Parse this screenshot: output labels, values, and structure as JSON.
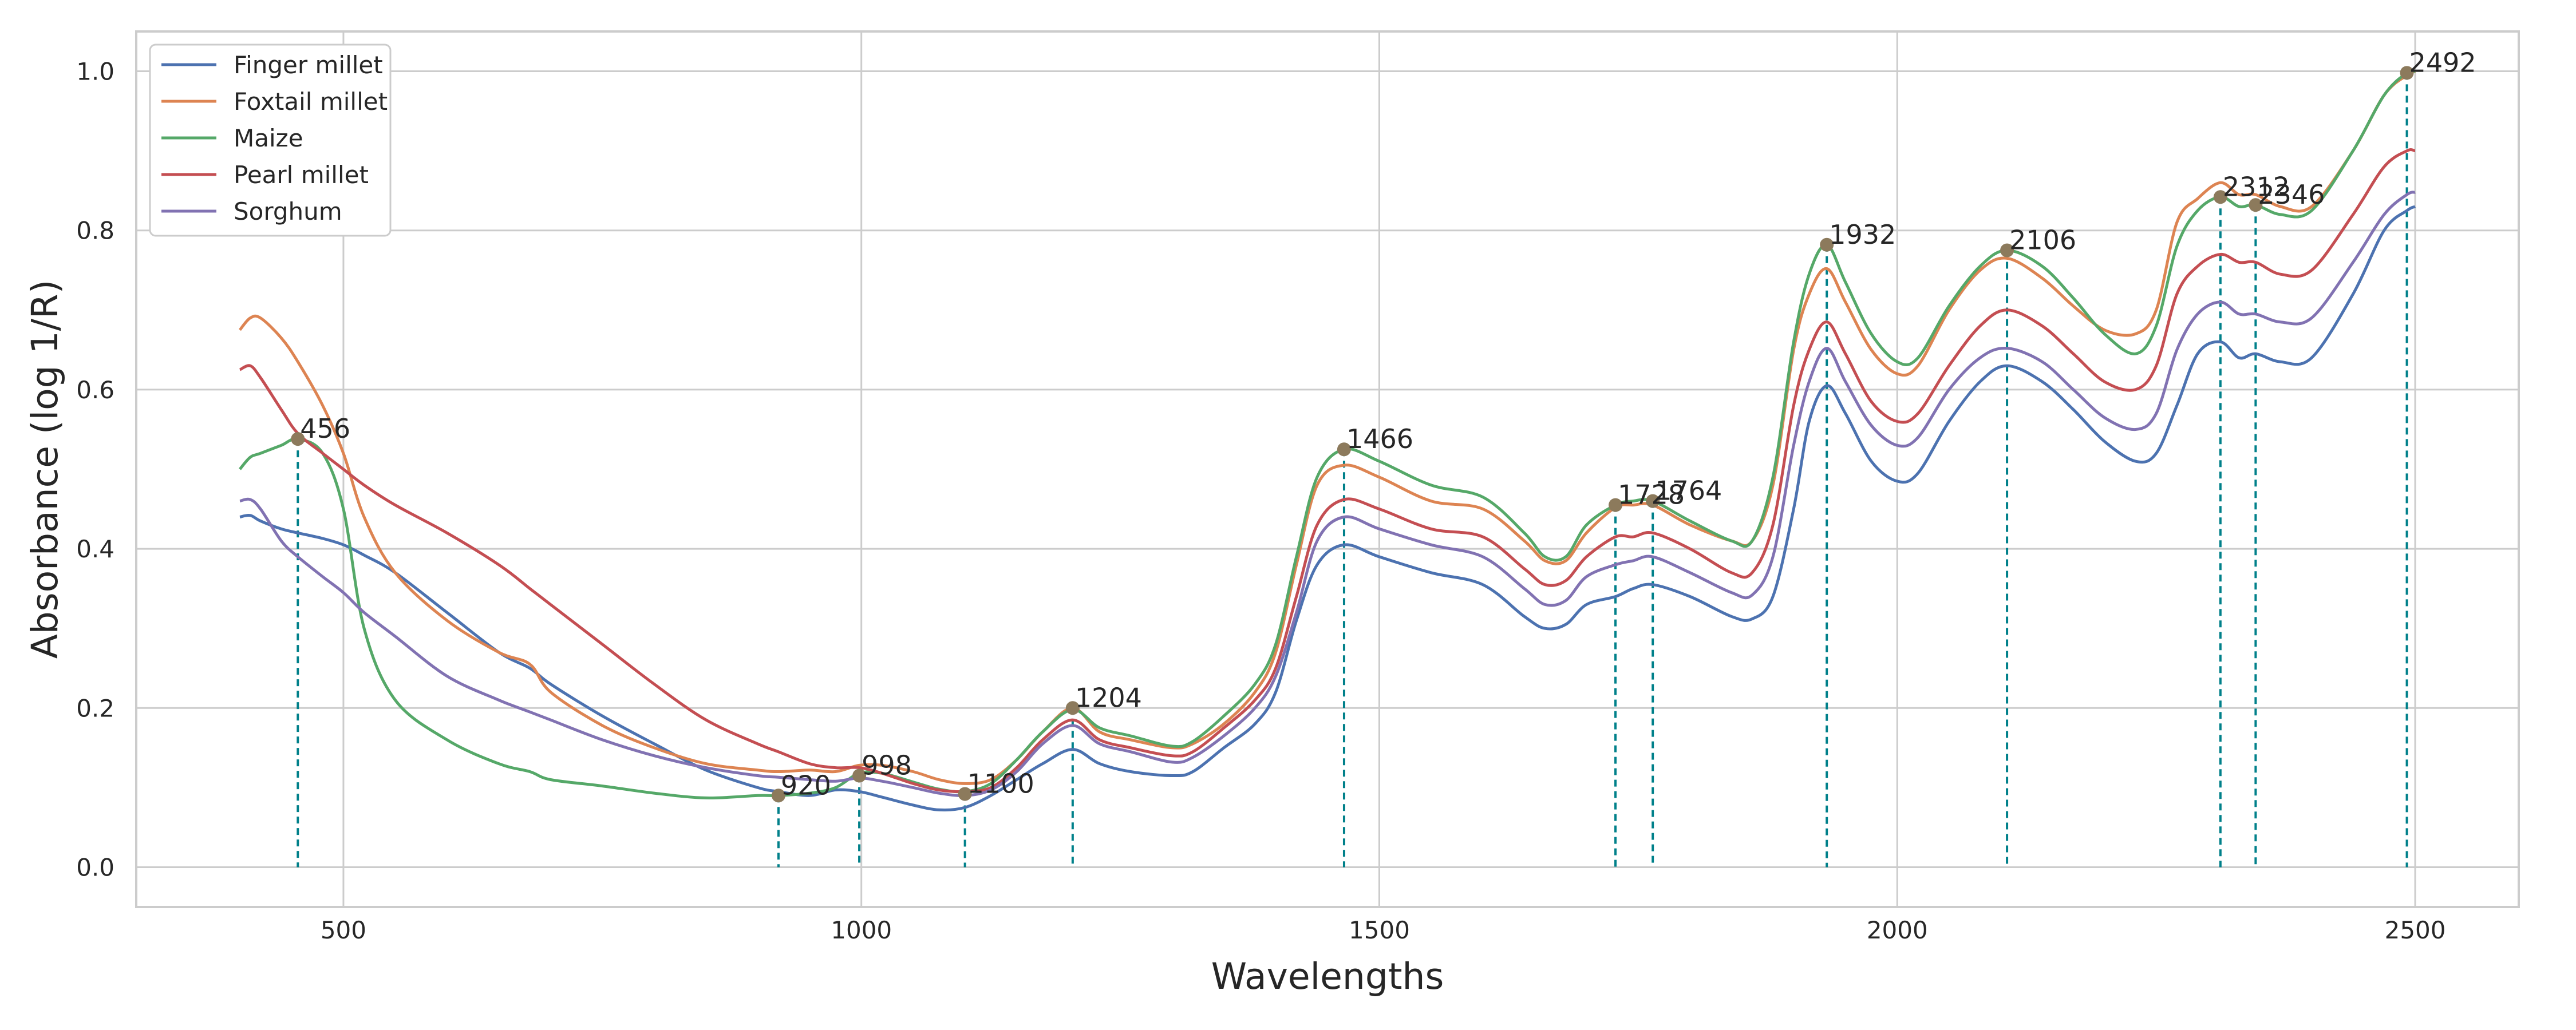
{
  "chart_data": {
    "type": "line",
    "xlabel": "Wavelengths",
    "ylabel": "Absorbance (log 1/R)",
    "xlim": [
      300,
      2600
    ],
    "ylim": [
      -0.05,
      1.05
    ],
    "x_ticks": [
      500,
      1000,
      1500,
      2000,
      2500
    ],
    "y_ticks": [
      0.0,
      0.2,
      0.4,
      0.6,
      0.8,
      1.0
    ],
    "grid": true,
    "legend_position": "top-left",
    "x": [
      400,
      410,
      420,
      440,
      456,
      480,
      500,
      520,
      550,
      600,
      650,
      680,
      700,
      750,
      800,
      850,
      900,
      920,
      950,
      975,
      998,
      1020,
      1050,
      1075,
      1100,
      1125,
      1150,
      1175,
      1204,
      1230,
      1260,
      1300,
      1320,
      1350,
      1380,
      1400,
      1420,
      1440,
      1466,
      1500,
      1550,
      1600,
      1640,
      1660,
      1680,
      1700,
      1728,
      1745,
      1764,
      1800,
      1840,
      1860,
      1880,
      1900,
      1915,
      1932,
      1950,
      1975,
      2000,
      2020,
      2050,
      2080,
      2106,
      2140,
      2170,
      2200,
      2230,
      2250,
      2270,
      2290,
      2312,
      2330,
      2346,
      2370,
      2400,
      2440,
      2470,
      2492,
      2500
    ],
    "series": [
      {
        "name": "Finger millet",
        "color": "#4c72b0",
        "values": [
          0.44,
          0.442,
          0.435,
          0.425,
          0.42,
          0.413,
          0.405,
          0.392,
          0.37,
          0.32,
          0.27,
          0.25,
          0.23,
          0.19,
          0.155,
          0.122,
          0.1,
          0.095,
          0.09,
          0.097,
          0.095,
          0.088,
          0.078,
          0.072,
          0.075,
          0.09,
          0.11,
          0.13,
          0.148,
          0.13,
          0.12,
          0.115,
          0.12,
          0.15,
          0.18,
          0.22,
          0.31,
          0.38,
          0.405,
          0.39,
          0.37,
          0.355,
          0.315,
          0.3,
          0.305,
          0.33,
          0.34,
          0.35,
          0.355,
          0.34,
          0.315,
          0.312,
          0.34,
          0.45,
          0.56,
          0.605,
          0.57,
          0.51,
          0.485,
          0.495,
          0.56,
          0.61,
          0.63,
          0.61,
          0.575,
          0.535,
          0.51,
          0.52,
          0.58,
          0.645,
          0.66,
          0.64,
          0.645,
          0.635,
          0.64,
          0.72,
          0.8,
          0.825,
          0.83
        ]
      },
      {
        "name": "Foxtail millet",
        "color": "#dd8452",
        "values": [
          0.675,
          0.69,
          0.69,
          0.665,
          0.635,
          0.58,
          0.52,
          0.44,
          0.37,
          0.31,
          0.27,
          0.255,
          0.22,
          0.178,
          0.15,
          0.13,
          0.122,
          0.12,
          0.122,
          0.12,
          0.128,
          0.128,
          0.12,
          0.11,
          0.105,
          0.11,
          0.135,
          0.17,
          0.2,
          0.17,
          0.16,
          0.15,
          0.155,
          0.18,
          0.22,
          0.27,
          0.38,
          0.48,
          0.505,
          0.49,
          0.46,
          0.45,
          0.41,
          0.385,
          0.385,
          0.42,
          0.452,
          0.455,
          0.455,
          0.43,
          0.41,
          0.41,
          0.48,
          0.65,
          0.72,
          0.752,
          0.71,
          0.65,
          0.62,
          0.63,
          0.7,
          0.75,
          0.765,
          0.74,
          0.705,
          0.675,
          0.67,
          0.7,
          0.81,
          0.84,
          0.86,
          0.845,
          0.845,
          0.83,
          0.83,
          0.9,
          0.97,
          0.995,
          1.0
        ]
      },
      {
        "name": "Maize",
        "color": "#55a868",
        "values": [
          0.5,
          0.515,
          0.52,
          0.53,
          0.538,
          0.52,
          0.45,
          0.3,
          0.21,
          0.16,
          0.13,
          0.12,
          0.11,
          0.102,
          0.093,
          0.087,
          0.09,
          0.09,
          0.093,
          0.1,
          0.118,
          0.118,
          0.107,
          0.098,
          0.095,
          0.105,
          0.135,
          0.17,
          0.198,
          0.175,
          0.165,
          0.152,
          0.158,
          0.19,
          0.23,
          0.28,
          0.39,
          0.49,
          0.525,
          0.51,
          0.48,
          0.465,
          0.42,
          0.39,
          0.39,
          0.43,
          0.455,
          0.46,
          0.46,
          0.435,
          0.41,
          0.41,
          0.49,
          0.66,
          0.745,
          0.782,
          0.735,
          0.67,
          0.635,
          0.64,
          0.705,
          0.755,
          0.775,
          0.755,
          0.715,
          0.67,
          0.645,
          0.68,
          0.78,
          0.825,
          0.842,
          0.83,
          0.832,
          0.82,
          0.825,
          0.9,
          0.97,
          0.998,
          1.0
        ]
      },
      {
        "name": "Pearl millet",
        "color": "#c44e52",
        "values": [
          0.625,
          0.63,
          0.615,
          0.575,
          0.545,
          0.52,
          0.5,
          0.48,
          0.455,
          0.42,
          0.38,
          0.35,
          0.33,
          0.28,
          0.23,
          0.185,
          0.155,
          0.145,
          0.13,
          0.125,
          0.125,
          0.118,
          0.105,
          0.097,
          0.095,
          0.1,
          0.125,
          0.16,
          0.185,
          0.16,
          0.15,
          0.14,
          0.145,
          0.175,
          0.21,
          0.25,
          0.34,
          0.43,
          0.462,
          0.45,
          0.425,
          0.415,
          0.375,
          0.355,
          0.36,
          0.39,
          0.415,
          0.415,
          0.42,
          0.4,
          0.37,
          0.37,
          0.43,
          0.58,
          0.65,
          0.685,
          0.645,
          0.585,
          0.56,
          0.57,
          0.63,
          0.68,
          0.7,
          0.68,
          0.645,
          0.61,
          0.6,
          0.63,
          0.72,
          0.755,
          0.77,
          0.76,
          0.76,
          0.745,
          0.75,
          0.82,
          0.88,
          0.9,
          0.9
        ]
      },
      {
        "name": "Sorghum",
        "color": "#8172b2",
        "values": [
          0.46,
          0.462,
          0.45,
          0.41,
          0.39,
          0.365,
          0.345,
          0.32,
          0.29,
          0.24,
          0.21,
          0.195,
          0.185,
          0.16,
          0.14,
          0.125,
          0.115,
          0.113,
          0.11,
          0.108,
          0.112,
          0.108,
          0.1,
          0.093,
          0.09,
          0.097,
          0.12,
          0.155,
          0.178,
          0.155,
          0.145,
          0.132,
          0.138,
          0.165,
          0.2,
          0.24,
          0.32,
          0.41,
          0.44,
          0.425,
          0.405,
          0.39,
          0.35,
          0.33,
          0.335,
          0.365,
          0.38,
          0.385,
          0.39,
          0.37,
          0.345,
          0.342,
          0.39,
          0.53,
          0.61,
          0.652,
          0.61,
          0.555,
          0.53,
          0.54,
          0.6,
          0.64,
          0.652,
          0.635,
          0.6,
          0.565,
          0.55,
          0.57,
          0.65,
          0.695,
          0.71,
          0.695,
          0.695,
          0.685,
          0.69,
          0.76,
          0.82,
          0.845,
          0.848
        ]
      }
    ],
    "peaks": [
      {
        "label": "456",
        "x": 456,
        "y": 0.538
      },
      {
        "label": "920",
        "x": 920,
        "y": 0.09
      },
      {
        "label": "998",
        "x": 998,
        "y": 0.115
      },
      {
        "label": "1100",
        "x": 1100,
        "y": 0.092
      },
      {
        "label": "1204",
        "x": 1204,
        "y": 0.2
      },
      {
        "label": "1466",
        "x": 1466,
        "y": 0.525
      },
      {
        "label": "1728",
        "x": 1728,
        "y": 0.455
      },
      {
        "label": "1764",
        "x": 1764,
        "y": 0.46
      },
      {
        "label": "1932",
        "x": 1932,
        "y": 0.782
      },
      {
        "label": "2106",
        "x": 2106,
        "y": 0.775
      },
      {
        "label": "2312",
        "x": 2312,
        "y": 0.842
      },
      {
        "label": "2346",
        "x": 2346,
        "y": 0.832
      },
      {
        "label": "2492",
        "x": 2492,
        "y": 0.998
      }
    ],
    "peak_line_color": "#00808a",
    "peak_marker_color": "#8c7a5c"
  }
}
